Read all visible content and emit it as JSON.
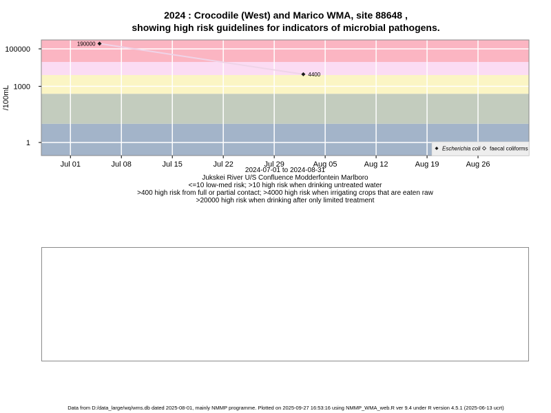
{
  "title_line1": "2024 : Crocodile (West) and Marico WMA, site 88648 ,",
  "title_line2": "showing high risk guidelines for indicators of microbial pathogens.",
  "chart_data": {
    "type": "line",
    "scale": "log",
    "ylabel": "/100mL",
    "ylim": [
      0.2,
      300000
    ],
    "xlim": [
      "2024-06-27",
      "2024-09-02"
    ],
    "x_ticks": [
      {
        "date": "2024-07-01",
        "label": "Jul 01"
      },
      {
        "date": "2024-07-08",
        "label": "Jul 08"
      },
      {
        "date": "2024-07-15",
        "label": "Jul 15"
      },
      {
        "date": "2024-07-22",
        "label": "Jul 22"
      },
      {
        "date": "2024-07-29",
        "label": "Jul 29"
      },
      {
        "date": "2024-08-05",
        "label": "Aug 05"
      },
      {
        "date": "2024-08-12",
        "label": "Aug 12"
      },
      {
        "date": "2024-08-19",
        "label": "Aug 19"
      },
      {
        "date": "2024-08-26",
        "label": "Aug 26"
      }
    ],
    "y_ticks": [
      {
        "value": 1,
        "label": "1"
      },
      {
        "value": 1000,
        "label": "1000"
      },
      {
        "value": 100000,
        "label": "100000"
      }
    ],
    "risk_bands": [
      {
        "low": 0.2,
        "high": 10,
        "color": "#a3b4c9"
      },
      {
        "low": 10,
        "high": 400,
        "color": "#c3ccbe"
      },
      {
        "low": 400,
        "high": 4000,
        "color": "#fbf5c4"
      },
      {
        "low": 4000,
        "high": 20000,
        "color": "#fbdcf3"
      },
      {
        "low": 20000,
        "high": 300000,
        "color": "#fbb5c2"
      }
    ],
    "grid": true,
    "series": [
      {
        "name": "Escherichia coli",
        "marker": "filled-diamond",
        "color": "#1a1a1a",
        "line_color": "#efd4e8",
        "points": [
          {
            "date": "2024-07-05",
            "value": 190000,
            "label": "190000"
          },
          {
            "date": "2024-08-02",
            "value": 4400,
            "label": "4400"
          }
        ]
      },
      {
        "name": "faecal coliforms",
        "marker": "open-diamond",
        "color": "#1a1a1a",
        "points": []
      }
    ],
    "legend_position": "bottom-right",
    "subtitle_lines": [
      "2024-07-01 to 2024-08-31",
      "Jukskei River U/S Confluence Modderfontein Marlboro",
      "<=10 low-med risk; >10 high risk when drinking untreated water",
      ">400 high risk from full or partial contact; >4000 high risk when irrigating crops that are eaten raw",
      ">20000 high risk when drinking after only limited treatment"
    ]
  },
  "footer": "Data from D:/data_large/wq/wms.db dated 2025-08-01, mainly NMMP programme. Plotted on 2025-09-27 16:53:16 using NMMP_WMA_web.R ver 9.4 under R version 4.5.1 (2025-06-13 ucrt)"
}
